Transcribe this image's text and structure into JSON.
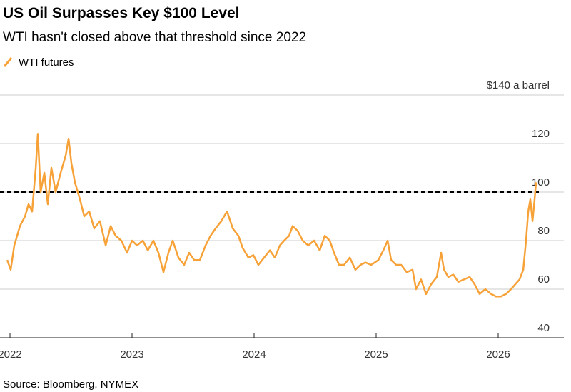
{
  "chart_data": {
    "type": "line",
    "title": "US Oil Surpasses Key $100 Level",
    "subtitle": "WTI hasn't closed above that threshold since 2022",
    "source": "Source: Bloomberg, NYMEX",
    "threshold": 100,
    "xlim": [
      2021.918,
      2026.538
    ],
    "xticks": [
      2022,
      2023,
      2024,
      2025,
      2026
    ],
    "ylim": [
      40,
      140
    ],
    "yticks": [
      40,
      60,
      80,
      100,
      120,
      {
        "value": 140,
        "label": "$140 a barrel"
      }
    ],
    "grid": true,
    "legend": "top-left",
    "series": [
      {
        "name": "WTI futures",
        "color": "#f7a238",
        "x": [
          2021.977,
          2022.006,
          2022.035,
          2022.082,
          2022.123,
          2022.152,
          2022.181,
          2022.211,
          2022.228,
          2022.251,
          2022.281,
          2022.31,
          2022.339,
          2022.374,
          2022.415,
          2022.456,
          2022.48,
          2022.503,
          2022.532,
          2022.573,
          2022.608,
          2022.649,
          2022.69,
          2022.737,
          2022.784,
          2022.825,
          2022.865,
          2022.912,
          2022.959,
          2023.0,
          2023.041,
          2023.088,
          2023.129,
          2023.175,
          2023.216,
          2023.257,
          2023.298,
          2023.333,
          2023.38,
          2023.427,
          2023.468,
          2023.509,
          2023.556,
          2023.602,
          2023.643,
          2023.684,
          2023.731,
          2023.778,
          2023.825,
          2023.871,
          2023.906,
          2023.953,
          2023.994,
          2024.035,
          2024.082,
          2024.129,
          2024.17,
          2024.211,
          2024.246,
          2024.287,
          2024.316,
          2024.357,
          2024.398,
          2024.444,
          2024.491,
          2024.538,
          2024.579,
          2024.62,
          2024.655,
          2024.696,
          2024.737,
          2024.784,
          2024.83,
          2024.871,
          2024.912,
          2024.959,
          2025.018,
          2025.059,
          2025.094,
          2025.123,
          2025.164,
          2025.205,
          2025.251,
          2025.298,
          2025.327,
          2025.368,
          2025.409,
          2025.45,
          2025.497,
          2025.532,
          2025.556,
          2025.591,
          2025.632,
          2025.673,
          2025.719,
          2025.766,
          2025.807,
          2025.848,
          2025.895,
          2025.942,
          2025.982,
          2026.023,
          2026.064,
          2026.105,
          2026.14,
          2026.175,
          2026.205,
          2026.228,
          2026.246,
          2026.263,
          2026.281,
          2026.298,
          2026.31
        ],
        "values": [
          72,
          68,
          78,
          86,
          90,
          95,
          92,
          110,
          124,
          100,
          108,
          95,
          110,
          100,
          108,
          115,
          122,
          112,
          104,
          97,
          90,
          92,
          85,
          88,
          78,
          86,
          82,
          80,
          75,
          80,
          78,
          80,
          76,
          80,
          75,
          67,
          75,
          80,
          73,
          70,
          75,
          72,
          72,
          78,
          82,
          85,
          88,
          92,
          85,
          82,
          77,
          73,
          74,
          70,
          73,
          76,
          73,
          78,
          80,
          82,
          86,
          84,
          80,
          78,
          80,
          76,
          82,
          80,
          75,
          70,
          70,
          73,
          68,
          70,
          71,
          70,
          72,
          76,
          80,
          72,
          70,
          70,
          67,
          68,
          60,
          64,
          58,
          62,
          65,
          75,
          68,
          65,
          66,
          63,
          64,
          65,
          62,
          58,
          60,
          58,
          57,
          57,
          58,
          60,
          62,
          64,
          68,
          80,
          92,
          97,
          88,
          97,
          104
        ]
      }
    ]
  }
}
